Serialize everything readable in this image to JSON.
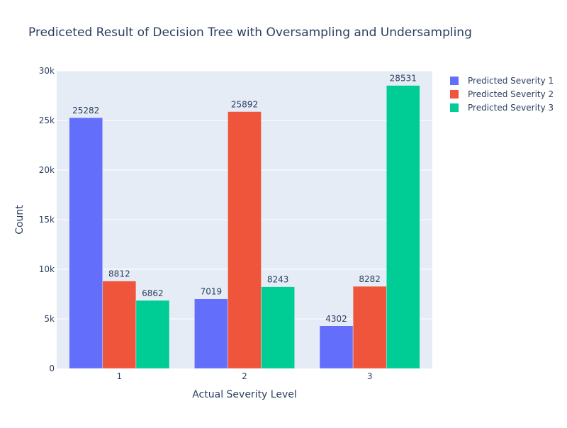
{
  "chart_data": {
    "type": "bar",
    "title": "Prediceted Result of Decision Tree with Oversampling and Undersampling",
    "xlabel": "Actual Severity Level",
    "ylabel": "Count",
    "categories": [
      "1",
      "2",
      "3"
    ],
    "ylim": [
      0,
      30000
    ],
    "yticks": [
      0,
      5000,
      10000,
      15000,
      20000,
      25000,
      30000
    ],
    "ytick_labels": [
      "0",
      "5k",
      "10k",
      "15k",
      "20k",
      "25k",
      "30k"
    ],
    "grid": true,
    "legend_position": "top-right",
    "series": [
      {
        "name": "Predicted Severity 1",
        "color": "#636efa",
        "values": [
          25282,
          7019,
          4302
        ]
      },
      {
        "name": "Predicted Severity 2",
        "color": "#ef553b",
        "values": [
          8812,
          25892,
          8282
        ]
      },
      {
        "name": "Predicted Severity 3",
        "color": "#00cc96",
        "values": [
          6862,
          8243,
          28531
        ]
      }
    ],
    "plot_background": "#e5ecf6",
    "text_color": "#2a3f5f"
  }
}
